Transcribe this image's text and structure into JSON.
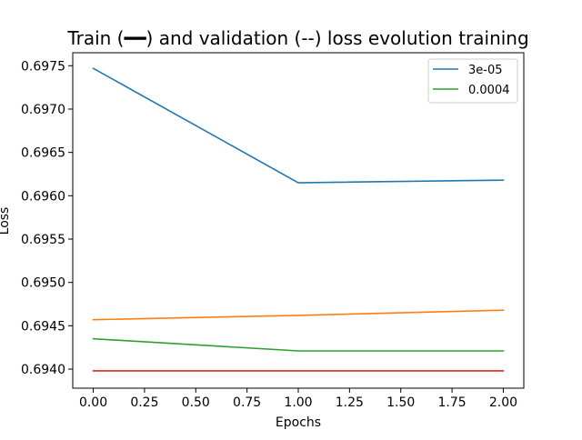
{
  "chart_data": {
    "type": "line",
    "title": "Train (━━) and validation (--) loss evolution training",
    "xlabel": "Epochs",
    "ylabel": "Loss",
    "x": [
      0.0,
      1.0,
      2.0
    ],
    "xlim": [
      -0.1,
      2.1
    ],
    "ylim": [
      0.69378,
      0.69765
    ],
    "xticks": [
      0.0,
      0.25,
      0.5,
      0.75,
      1.0,
      1.25,
      1.5,
      1.75,
      2.0
    ],
    "xtick_labels": [
      "0.00",
      "0.25",
      "0.50",
      "0.75",
      "1.00",
      "1.25",
      "1.50",
      "1.75",
      "2.00"
    ],
    "yticks": [
      0.694,
      0.6945,
      0.695,
      0.6955,
      0.696,
      0.6965,
      0.697,
      0.6975
    ],
    "ytick_labels": [
      "0.6940",
      "0.6945",
      "0.6950",
      "0.6955",
      "0.6960",
      "0.6965",
      "0.6970",
      "0.6975"
    ],
    "grid": false,
    "legend_position": "top-right",
    "series": [
      {
        "name": "3e-05",
        "color": "#1f77b4",
        "values": [
          0.69747,
          0.69615,
          0.69618
        ],
        "in_legend": true
      },
      {
        "color": "#ff7f0e",
        "values": [
          0.69457,
          0.69462,
          0.69468
        ],
        "in_legend": false
      },
      {
        "name": "0.0004",
        "color": "#2ca02c",
        "values": [
          0.69435,
          0.69421,
          0.69421
        ],
        "in_legend": true
      },
      {
        "color": "#d62728",
        "values": [
          0.69398,
          0.69398,
          0.69398
        ],
        "in_legend": false
      }
    ]
  }
}
